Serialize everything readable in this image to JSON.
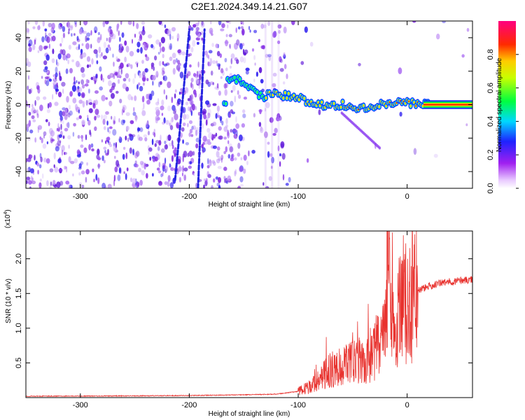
{
  "title": "C2E1.2024.349.14.21.G07",
  "colors": {
    "snr_line": "#e8322e",
    "spectrogram_noise": "#7a1fe0",
    "axis": "#000000",
    "background": "#ffffff"
  },
  "chart_data": [
    {
      "type": "heatmap",
      "title": "C2E1.2024.349.14.21.G07",
      "xlabel": "Height of straight line (km)",
      "ylabel": "Frequency (Hz)",
      "xlim": [
        -350,
        60
      ],
      "ylim": [
        -50,
        50
      ],
      "x_ticks": [
        "-300",
        "-200",
        "-100",
        "0"
      ],
      "y_ticks": [
        "-40",
        "-20",
        "0",
        "20",
        "40"
      ],
      "grid": false,
      "colorbar": {
        "label": "Normalized spectral amplitude",
        "range": [
          0.0,
          1.0
        ],
        "ticks": [
          "0.0",
          "0.2",
          "0.4",
          "0.6",
          "0.8"
        ],
        "colormap": "violet-blue-cyan-green-yellow-red-magenta"
      },
      "carrier_track": {
        "description": "dominant frequency ridge",
        "x": [
          -165,
          -150,
          -135,
          -120,
          -100,
          -80,
          -60,
          -40,
          -20,
          0,
          20,
          40,
          60
        ],
        "y": [
          15,
          14,
          5,
          6,
          4,
          0,
          0,
          -2,
          1,
          1,
          0,
          0,
          0
        ]
      }
    },
    {
      "type": "line",
      "xlabel": "Height of straight line (km)",
      "ylabel": "SNR (10 * v/v)",
      "y_multiplier": "(x10^4)",
      "xlim": [
        -350,
        60
      ],
      "ylim": [
        0,
        24000
      ],
      "x_ticks": [
        "-300",
        "-200",
        "-100",
        "0"
      ],
      "y_ticks": [
        "0.5",
        "1.0",
        "1.5",
        "2.0"
      ],
      "grid": false,
      "series": [
        {
          "x": [
            -350,
            -300,
            -250,
            -200,
            -150,
            -120,
            -100,
            -90,
            -80,
            -75,
            -70,
            -60,
            -50,
            -40,
            -30,
            -20,
            -17,
            -15,
            -10,
            0,
            10,
            20,
            30,
            40,
            50,
            60
          ],
          "y": [
            200,
            220,
            250,
            300,
            400,
            500,
            900,
            1500,
            2500,
            3500,
            4000,
            4500,
            5000,
            5500,
            6500,
            9000,
            24000,
            10000,
            12000,
            13000,
            15500,
            16000,
            16500,
            16700,
            16900,
            17000
          ]
        }
      ]
    }
  ]
}
